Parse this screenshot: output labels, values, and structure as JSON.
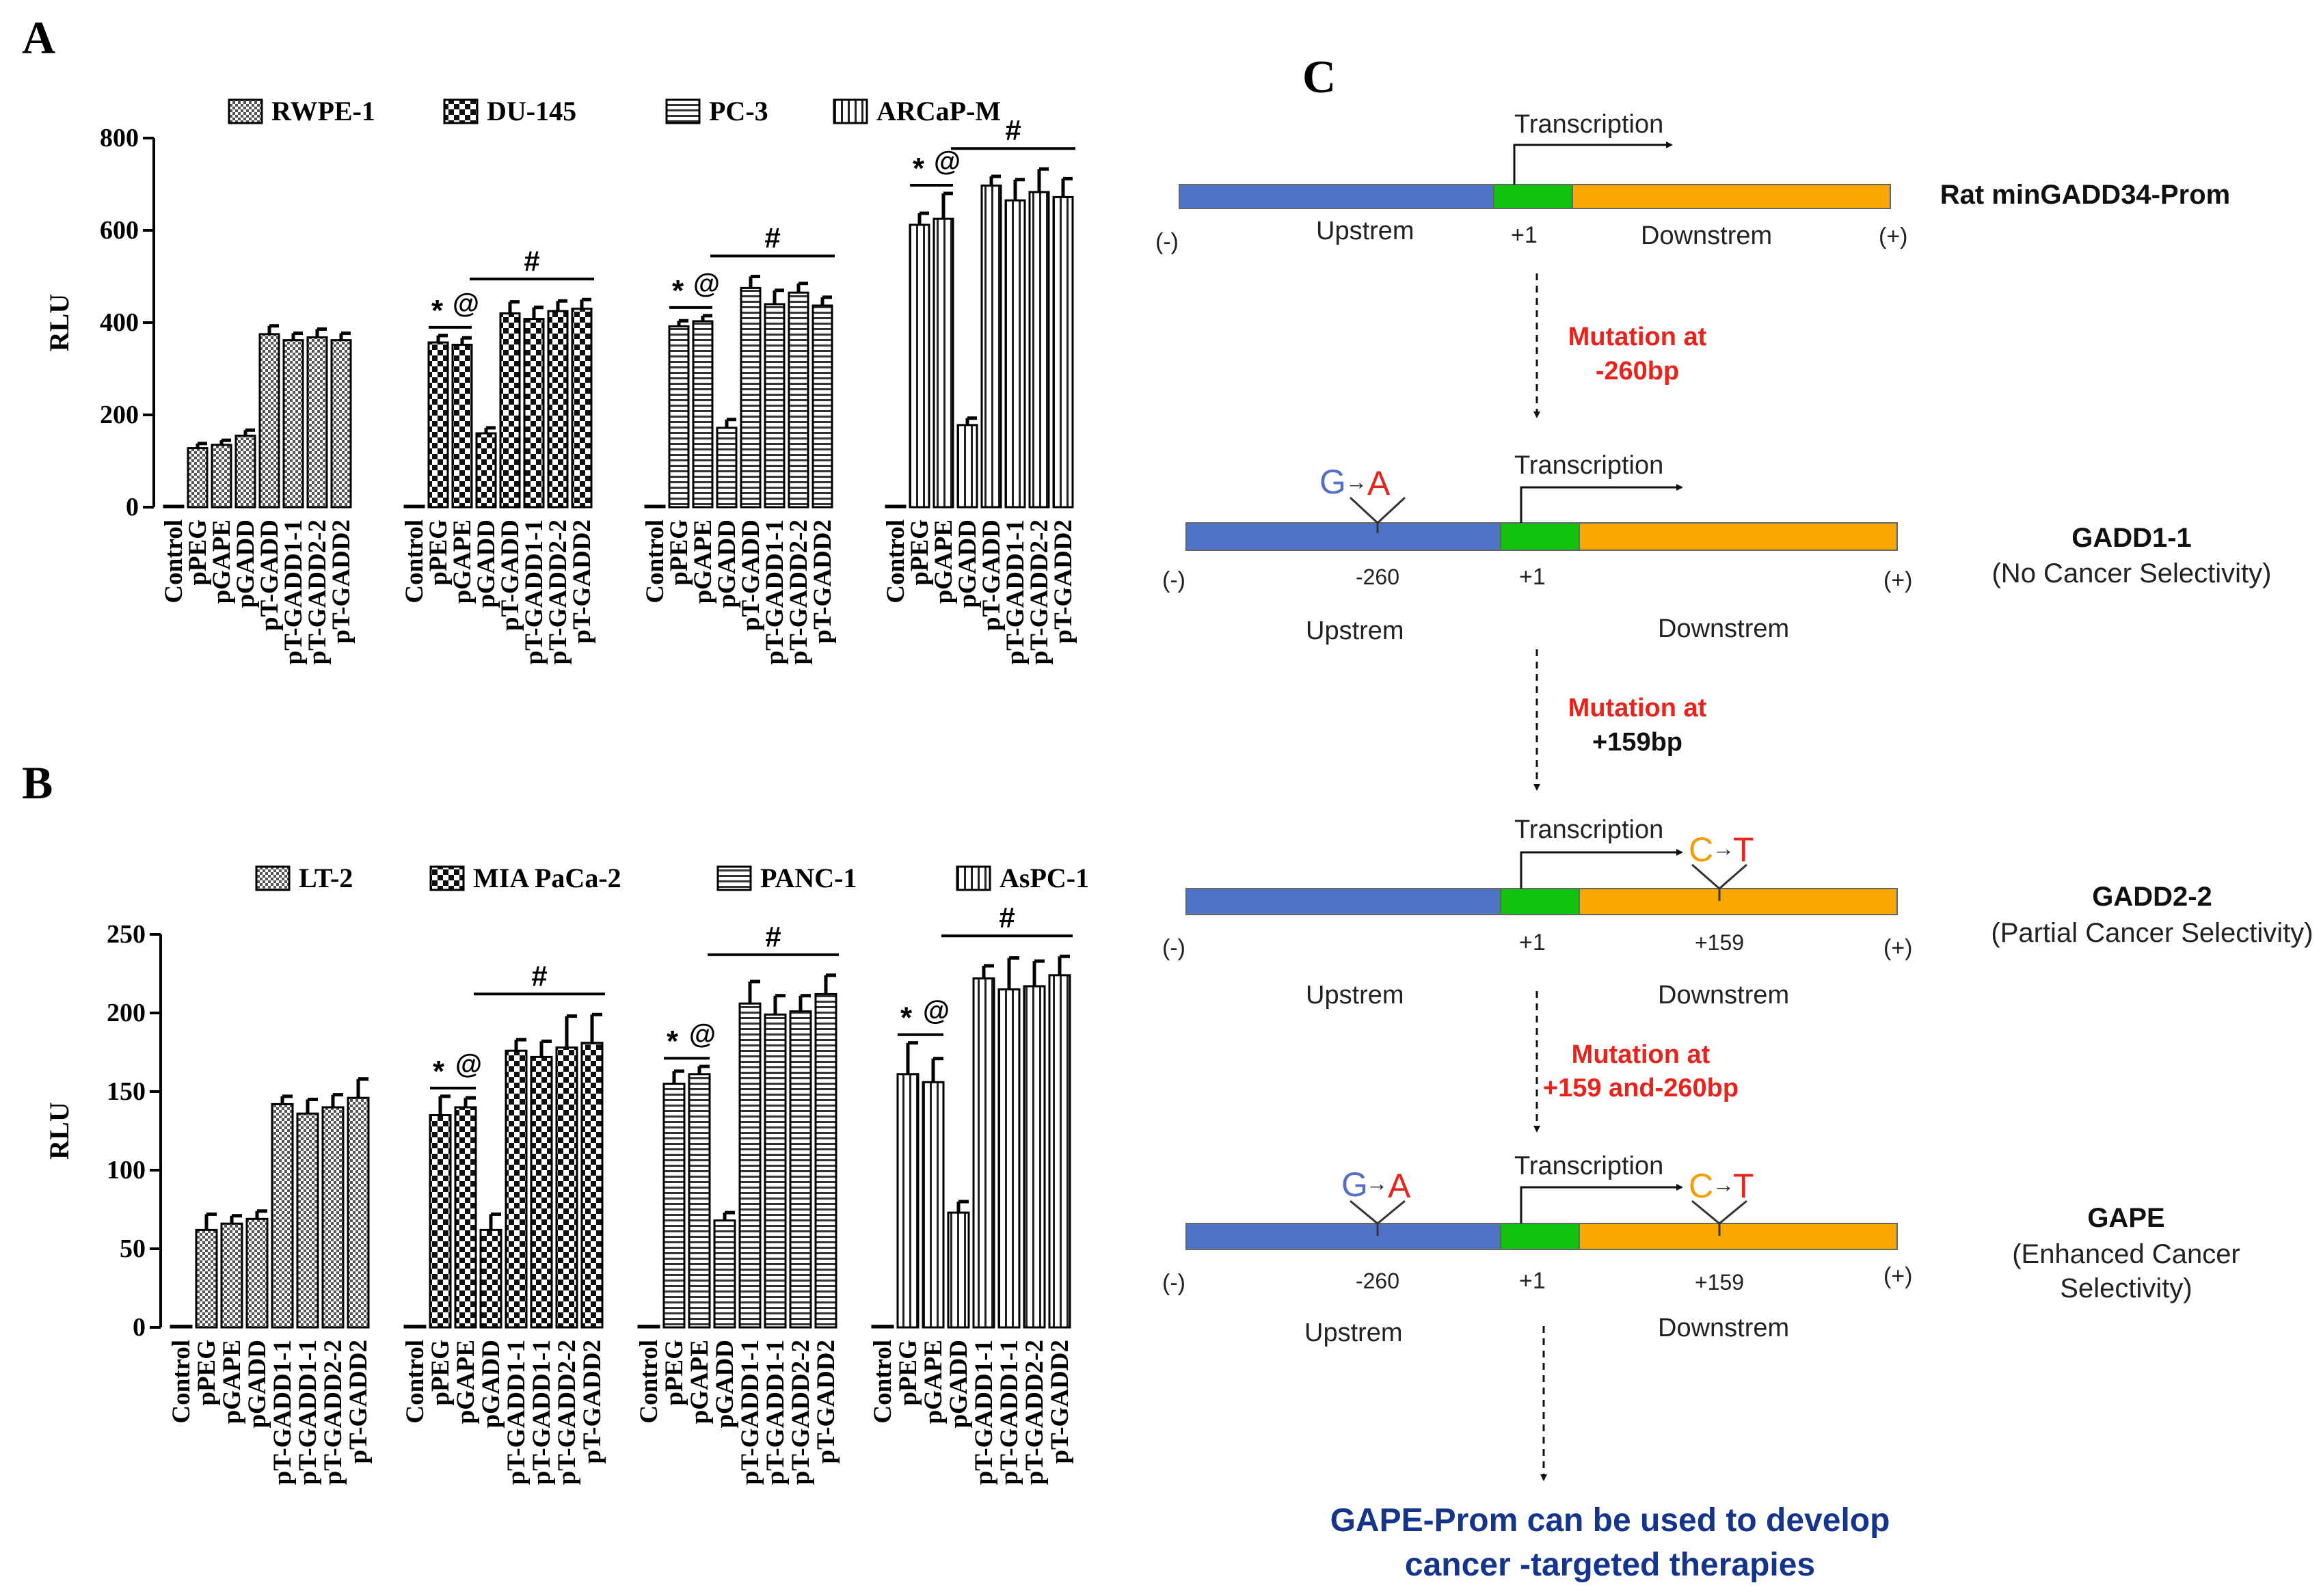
{
  "panel_labels": {
    "a": "A",
    "b": "B",
    "c": "C"
  },
  "colors": {
    "upstream": "#4f74c7",
    "tss": "#10c20d",
    "downstream": "#f9a800",
    "mutation": "#e8231b",
    "g_base": "#5470c6",
    "c_base": "#f59b00",
    "conclusion": "#15348c"
  },
  "chart_data": [
    {
      "id": "A",
      "type": "bar",
      "ylabel": "RLU",
      "ylim": [
        0,
        800
      ],
      "yticks": [
        "0",
        "200",
        "400",
        "600",
        "800"
      ],
      "categories": [
        "Control",
        "pPEG",
        "pGAPE",
        "pGADD",
        "pT-GADD",
        "pT-GADD1-1",
        "pT-GADD2-2",
        "pT-GADD2"
      ],
      "legend": [
        "RWPE-1",
        "DU-145",
        "PC-3",
        "ARCaP-M"
      ],
      "series": [
        {
          "name": "RWPE-1",
          "values": [
            3,
            128,
            135,
            155,
            375,
            362,
            368,
            362
          ],
          "errors": [
            0,
            10,
            10,
            12,
            18,
            15,
            18,
            15
          ],
          "marks": []
        },
        {
          "name": "DU-145",
          "values": [
            3,
            357,
            352,
            160,
            420,
            408,
            425,
            430
          ],
          "errors": [
            0,
            15,
            15,
            12,
            25,
            25,
            22,
            20
          ],
          "marks": [
            "*",
            "@",
            "#"
          ]
        },
        {
          "name": "PC-3",
          "values": [
            3,
            392,
            403,
            172,
            475,
            440,
            465,
            437
          ],
          "errors": [
            0,
            12,
            12,
            18,
            25,
            30,
            20,
            18
          ],
          "marks": [
            "*",
            "@",
            "#"
          ]
        },
        {
          "name": "ARCaP-M",
          "values": [
            3,
            612,
            625,
            178,
            697,
            665,
            683,
            672
          ],
          "errors": [
            0,
            25,
            55,
            15,
            20,
            45,
            50,
            40
          ],
          "marks": [
            "*",
            "@",
            "#"
          ]
        }
      ]
    },
    {
      "id": "B",
      "type": "bar",
      "ylabel": "RLU",
      "ylim": [
        0,
        250
      ],
      "yticks": [
        "0",
        "50",
        "100",
        "150",
        "200",
        "250"
      ],
      "categories": [
        "Control",
        "pPEG",
        "pGAPE",
        "pGADD",
        "pT-GADD1-1",
        "pT-GADD1-1",
        "pT-GADD2-2",
        "pT-GADD2"
      ],
      "legend": [
        "LT-2",
        "MIA PaCa-2",
        "PANC-1",
        "AsPC-1"
      ],
      "series": [
        {
          "name": "LT-2",
          "values": [
            1,
            62,
            66,
            69,
            142,
            136,
            140,
            146
          ],
          "errors": [
            0,
            10,
            5,
            5,
            5,
            9,
            8,
            12
          ],
          "marks": []
        },
        {
          "name": "MIA PaCa-2",
          "values": [
            1,
            135,
            140,
            62,
            176,
            172,
            178,
            181
          ],
          "errors": [
            0,
            12,
            6,
            10,
            7,
            10,
            20,
            18
          ],
          "marks": [
            "*",
            "@",
            "#"
          ]
        },
        {
          "name": "PANC-1",
          "values": [
            1,
            155,
            161,
            68,
            206,
            199,
            201,
            212
          ],
          "errors": [
            0,
            8,
            5,
            5,
            14,
            12,
            10,
            12
          ],
          "marks": [
            "*",
            "@",
            "#"
          ]
        },
        {
          "name": "AsPC-1",
          "values": [
            1,
            161,
            156,
            73,
            222,
            215,
            217,
            224
          ],
          "errors": [
            0,
            20,
            15,
            7,
            8,
            20,
            16,
            12
          ],
          "marks": [
            "*",
            "@",
            "#"
          ]
        }
      ]
    }
  ],
  "diagram": {
    "common": {
      "transcription": "Transcription",
      "minus": "(-)",
      "plus": "(+)",
      "tss_label": "+1",
      "upstream": "Upstrem",
      "downstream": "Downstrem",
      "pos_260": "-260",
      "pos_159": "+159",
      "g": "G",
      "a": "A",
      "c": "C",
      "t": "T"
    },
    "constructs": [
      {
        "name": "Rat minGADD34-Prom",
        "sub": ""
      },
      {
        "name": "GADD1-1",
        "sub": "(No Cancer Selectivity)"
      },
      {
        "name": "GADD2-2",
        "sub": "(Partial Cancer Selectivity)"
      },
      {
        "name": "GAPE",
        "sub": "(Enhanced Cancer",
        "sub2": "Selectivity)"
      }
    ],
    "mutations": [
      {
        "line1": "Mutation at",
        "line2": "-260bp"
      },
      {
        "line1": "Mutation at",
        "line2": "+159bp"
      },
      {
        "line1": "Mutation at",
        "line2": "+159 and-260bp"
      }
    ],
    "conclusion": [
      "GAPE-Prom can be used to develop",
      "cancer -targeted therapies"
    ]
  }
}
